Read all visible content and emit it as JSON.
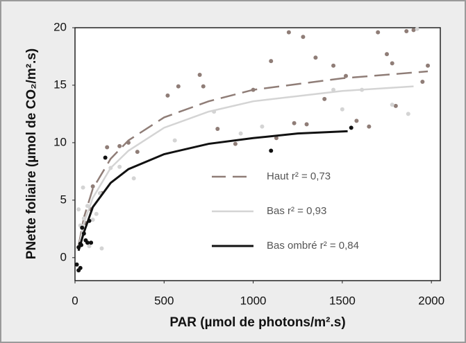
{
  "chart_data": {
    "type": "scatter",
    "x_label": "PAR (µmol de photons/m².s)",
    "y_label": "PNette foliaire (µmol de CO₂/m².s)",
    "xlim": [
      0,
      2050
    ],
    "ylim": [
      -2,
      20
    ],
    "xticks": [
      0,
      500,
      1000,
      1500,
      2000
    ],
    "yticks": [
      0,
      5,
      10,
      15,
      20
    ],
    "series": [
      {
        "name": "Haut r² = 0,73",
        "color": "#8f7d77",
        "line_style": "dashed",
        "x": [
          180,
          250,
          300,
          350,
          520,
          580,
          700,
          720,
          800,
          900,
          1000,
          1100,
          1130,
          1200,
          1230,
          1280,
          1300,
          1350,
          1400,
          1450,
          1520,
          1580,
          1650,
          1700,
          1750,
          1780,
          1800,
          1860,
          1900,
          1950,
          1980,
          100,
          150,
          60,
          90
        ],
        "values": [
          9.6,
          9.7,
          10.0,
          9.2,
          14.1,
          14.9,
          15.9,
          14.9,
          11.2,
          9.9,
          14.6,
          17.1,
          10.4,
          19.6,
          11.7,
          19.2,
          11.6,
          17.4,
          13.8,
          16.7,
          15.8,
          11.9,
          11.4,
          19.6,
          17.7,
          16.9,
          13.2,
          19.7,
          19.8,
          15.3,
          16.7,
          6.2,
          5.6,
          3.0,
          4.2
        ],
        "fit_x": [
          20,
          50,
          100,
          200,
          300,
          500,
          750,
          1000,
          1500,
          1980
        ],
        "fit_values": [
          1.0,
          3.5,
          6.0,
          8.6,
          10.2,
          12.2,
          13.6,
          14.6,
          15.6,
          16.2
        ]
      },
      {
        "name": "Bas r² = 0,93",
        "color": "#d4d4d4",
        "line_style": "solid",
        "x": [
          30,
          50,
          70,
          100,
          120,
          140,
          200,
          250,
          330,
          560,
          780,
          930,
          1050,
          1450,
          1500,
          1610,
          1780,
          1870,
          1920,
          20,
          45,
          80,
          150
        ],
        "values": [
          2.8,
          3.4,
          4.5,
          3.3,
          3.8,
          5.6,
          7.8,
          7.9,
          6.9,
          10.2,
          12.7,
          10.8,
          11.4,
          14.6,
          12.9,
          14.6,
          13.3,
          12.5,
          19.9,
          4.2,
          6.1,
          1.0,
          0.8
        ],
        "fit_x": [
          20,
          50,
          100,
          200,
          300,
          500,
          750,
          1000,
          1500,
          1900
        ],
        "fit_values": [
          0.8,
          3.0,
          5.2,
          7.8,
          9.3,
          11.3,
          12.7,
          13.6,
          14.5,
          14.9
        ]
      },
      {
        "name": "Bas ombré r² = 0,84",
        "color": "#111111",
        "line_style": "solid",
        "x": [
          10,
          20,
          30,
          20,
          30,
          40,
          50,
          60,
          80,
          90,
          70,
          170,
          1100,
          1550,
          35
        ],
        "values": [
          -0.6,
          -1.1,
          -0.9,
          0.9,
          1.2,
          2.6,
          2.1,
          1.5,
          3.2,
          1.3,
          1.3,
          8.7,
          9.3,
          11.3,
          1.1
        ],
        "fit_x": [
          20,
          50,
          100,
          200,
          300,
          500,
          750,
          1000,
          1250,
          1530
        ],
        "fit_values": [
          0.6,
          2.2,
          4.4,
          6.5,
          7.7,
          9.0,
          9.9,
          10.4,
          10.8,
          11.0
        ]
      }
    ]
  }
}
